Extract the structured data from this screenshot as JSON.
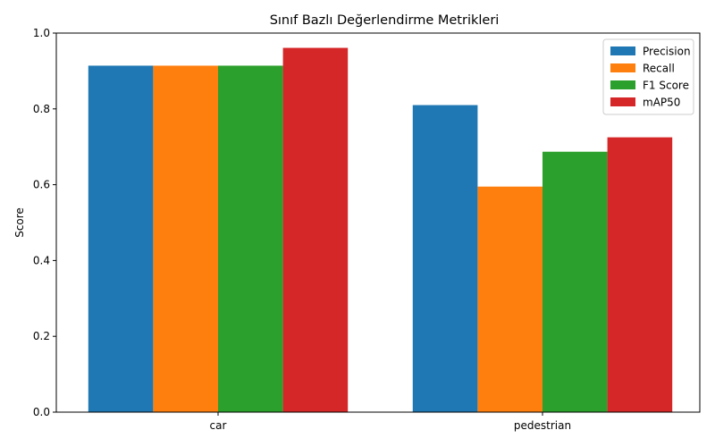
{
  "chart_data": {
    "type": "bar",
    "title": "Sınıf Bazlı Değerlendirme Metrikleri",
    "xlabel": "",
    "ylabel": "Score",
    "ylim": [
      0,
      1.0
    ],
    "yticks": [
      "0.0",
      "0.2",
      "0.4",
      "0.6",
      "0.8",
      "1.0"
    ],
    "categories": [
      "car",
      "pedestrian"
    ],
    "series": [
      {
        "name": "Precision",
        "color": "#1f77b4",
        "values": [
          0.914,
          0.81
        ]
      },
      {
        "name": "Recall",
        "color": "#ff7f0e",
        "values": [
          0.914,
          0.595
        ]
      },
      {
        "name": "F1 Score",
        "color": "#2ca02c",
        "values": [
          0.914,
          0.687
        ]
      },
      {
        "name": "mAP50",
        "color": "#d62728",
        "values": [
          0.961,
          0.725
        ]
      }
    ],
    "legend_position": "top-right",
    "grid": false
  }
}
